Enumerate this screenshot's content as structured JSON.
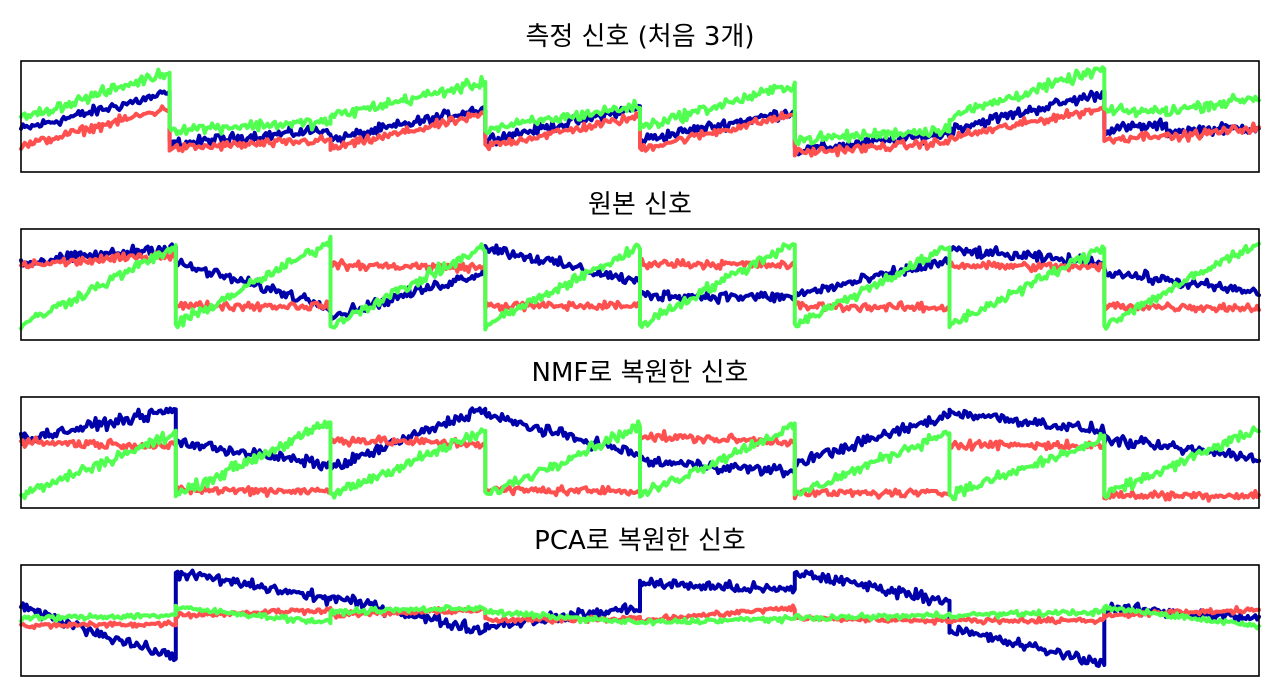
{
  "chart_data": [
    {
      "type": "line",
      "title": "측정 신호 (처음 3개)",
      "x_range": [
        0,
        2000
      ],
      "segments": [
        {
          "start": 0,
          "end": 240
        },
        {
          "start": 240,
          "end": 500
        },
        {
          "start": 500,
          "end": 750
        },
        {
          "start": 750,
          "end": 1000
        },
        {
          "start": 1000,
          "end": 1250
        },
        {
          "start": 1250,
          "end": 1500
        },
        {
          "start": 1500,
          "end": 1750
        },
        {
          "start": 1750,
          "end": 1850
        },
        {
          "start": 1850,
          "end": 2000
        }
      ],
      "series": [
        {
          "color": "#0000aa",
          "levels": [
            [
              0.38,
              0.72
            ],
            [
              0.24,
              0.38
            ],
            [
              0.28,
              0.58
            ],
            [
              0.28,
              0.58
            ],
            [
              0.28,
              0.55
            ],
            [
              0.18,
              0.34
            ],
            [
              0.38,
              0.72
            ],
            [
              0.38,
              0.42
            ],
            [
              0.36,
              0.4
            ]
          ],
          "noise": 0.05
        },
        {
          "color": "#ff5050",
          "levels": [
            [
              0.22,
              0.58
            ],
            [
              0.2,
              0.28
            ],
            [
              0.2,
              0.52
            ],
            [
              0.22,
              0.5
            ],
            [
              0.2,
              0.52
            ],
            [
              0.16,
              0.26
            ],
            [
              0.3,
              0.58
            ],
            [
              0.28,
              0.34
            ],
            [
              0.3,
              0.4
            ]
          ],
          "noise": 0.04
        },
        {
          "color": "#50ff50",
          "levels": [
            [
              0.48,
              0.92
            ],
            [
              0.38,
              0.45
            ],
            [
              0.5,
              0.82
            ],
            [
              0.38,
              0.6
            ],
            [
              0.4,
              0.8
            ],
            [
              0.28,
              0.38
            ],
            [
              0.5,
              0.95
            ],
            [
              0.55,
              0.55
            ],
            [
              0.55,
              0.68
            ]
          ],
          "noise": 0.05
        }
      ]
    },
    {
      "type": "line",
      "title": "원본 신호",
      "x_range": [
        0,
        2000
      ],
      "segments": [
        {
          "start": 0,
          "end": 250
        },
        {
          "start": 250,
          "end": 500
        },
        {
          "start": 500,
          "end": 750
        },
        {
          "start": 750,
          "end": 1000
        },
        {
          "start": 1000,
          "end": 1250
        },
        {
          "start": 1250,
          "end": 1500
        },
        {
          "start": 1500,
          "end": 1750
        },
        {
          "start": 1750,
          "end": 2000
        }
      ],
      "series": [
        {
          "color": "#0000aa",
          "levels": [
            [
              0.7,
              0.85
            ],
            [
              0.7,
              0.3
            ],
            [
              0.2,
              0.62
            ],
            [
              0.85,
              0.52
            ],
            [
              0.4,
              0.38
            ],
            [
              0.4,
              0.72
            ],
            [
              0.82,
              0.7
            ],
            [
              0.62,
              0.42
            ]
          ],
          "noise": 0.05
        },
        {
          "color": "#ff5050",
          "levels": [
            [
              0.68,
              0.78
            ],
            [
              0.3,
              0.3
            ],
            [
              0.68,
              0.66
            ],
            [
              0.3,
              0.3
            ],
            [
              0.7,
              0.68
            ],
            [
              0.3,
              0.28
            ],
            [
              0.68,
              0.66
            ],
            [
              0.3,
              0.28
            ]
          ],
          "noise": 0.04
        },
        {
          "color": "#50ff50",
          "levels": [
            [
              0.12,
              0.85
            ],
            [
              0.12,
              0.9
            ],
            [
              0.12,
              0.85
            ],
            [
              0.12,
              0.85
            ],
            [
              0.12,
              0.9
            ],
            [
              0.12,
              0.85
            ],
            [
              0.12,
              0.85
            ],
            [
              0.12,
              0.9
            ]
          ],
          "noise": 0.05
        }
      ]
    },
    {
      "type": "line",
      "title": "NMF로 복원한 신호",
      "x_range": [
        0,
        2000
      ],
      "segments": [
        {
          "start": 0,
          "end": 250
        },
        {
          "start": 250,
          "end": 500
        },
        {
          "start": 500,
          "end": 750
        },
        {
          "start": 750,
          "end": 1000
        },
        {
          "start": 1000,
          "end": 1250
        },
        {
          "start": 1250,
          "end": 1500
        },
        {
          "start": 1500,
          "end": 1750
        },
        {
          "start": 1750,
          "end": 2000
        }
      ],
      "series": [
        {
          "color": "#0000aa",
          "levels": [
            [
              0.62,
              0.9
            ],
            [
              0.6,
              0.38
            ],
            [
              0.35,
              0.92
            ],
            [
              0.85,
              0.48
            ],
            [
              0.42,
              0.32
            ],
            [
              0.4,
              0.85
            ],
            [
              0.88,
              0.7
            ],
            [
              0.62,
              0.45
            ]
          ],
          "noise": 0.05
        },
        {
          "color": "#ff5050",
          "levels": [
            [
              0.6,
              0.56
            ],
            [
              0.15,
              0.14
            ],
            [
              0.62,
              0.58
            ],
            [
              0.15,
              0.14
            ],
            [
              0.65,
              0.6
            ],
            [
              0.12,
              0.12
            ],
            [
              0.58,
              0.56
            ],
            [
              0.1,
              0.1
            ]
          ],
          "noise": 0.04
        },
        {
          "color": "#50ff50",
          "levels": [
            [
              0.1,
              0.68
            ],
            [
              0.1,
              0.78
            ],
            [
              0.1,
              0.7
            ],
            [
              0.1,
              0.75
            ],
            [
              0.1,
              0.75
            ],
            [
              0.1,
              0.7
            ],
            [
              0.1,
              0.62
            ],
            [
              0.1,
              0.72
            ]
          ],
          "noise": 0.05
        }
      ]
    },
    {
      "type": "line",
      "title": "PCA로 복원한 신호",
      "x_range": [
        0,
        2000
      ],
      "segments": [
        {
          "start": 0,
          "end": 250
        },
        {
          "start": 250,
          "end": 500
        },
        {
          "start": 500,
          "end": 750
        },
        {
          "start": 750,
          "end": 1000
        },
        {
          "start": 1000,
          "end": 1250
        },
        {
          "start": 1250,
          "end": 1500
        },
        {
          "start": 1500,
          "end": 1750
        },
        {
          "start": 1750,
          "end": 2000
        }
      ],
      "series": [
        {
          "color": "#0000aa",
          "levels": [
            [
              0.62,
              0.15
            ],
            [
              0.95,
              0.7
            ],
            [
              0.72,
              0.4
            ],
            [
              0.45,
              0.62
            ],
            [
              0.85,
              0.78
            ],
            [
              0.95,
              0.68
            ],
            [
              0.42,
              0.1
            ],
            [
              0.62,
              0.52
            ]
          ],
          "noise": 0.05
        },
        {
          "color": "#ff5050",
          "levels": [
            [
              0.45,
              0.47
            ],
            [
              0.55,
              0.6
            ],
            [
              0.55,
              0.6
            ],
            [
              0.5,
              0.52
            ],
            [
              0.5,
              0.62
            ],
            [
              0.52,
              0.5
            ],
            [
              0.5,
              0.5
            ],
            [
              0.55,
              0.6
            ]
          ],
          "noise": 0.025
        },
        {
          "color": "#50ff50",
          "levels": [
            [
              0.52,
              0.55
            ],
            [
              0.62,
              0.48
            ],
            [
              0.58,
              0.62
            ],
            [
              0.58,
              0.48
            ],
            [
              0.48,
              0.52
            ],
            [
              0.52,
              0.55
            ],
            [
              0.55,
              0.58
            ],
            [
              0.62,
              0.45
            ]
          ],
          "noise": 0.025
        }
      ]
    }
  ]
}
